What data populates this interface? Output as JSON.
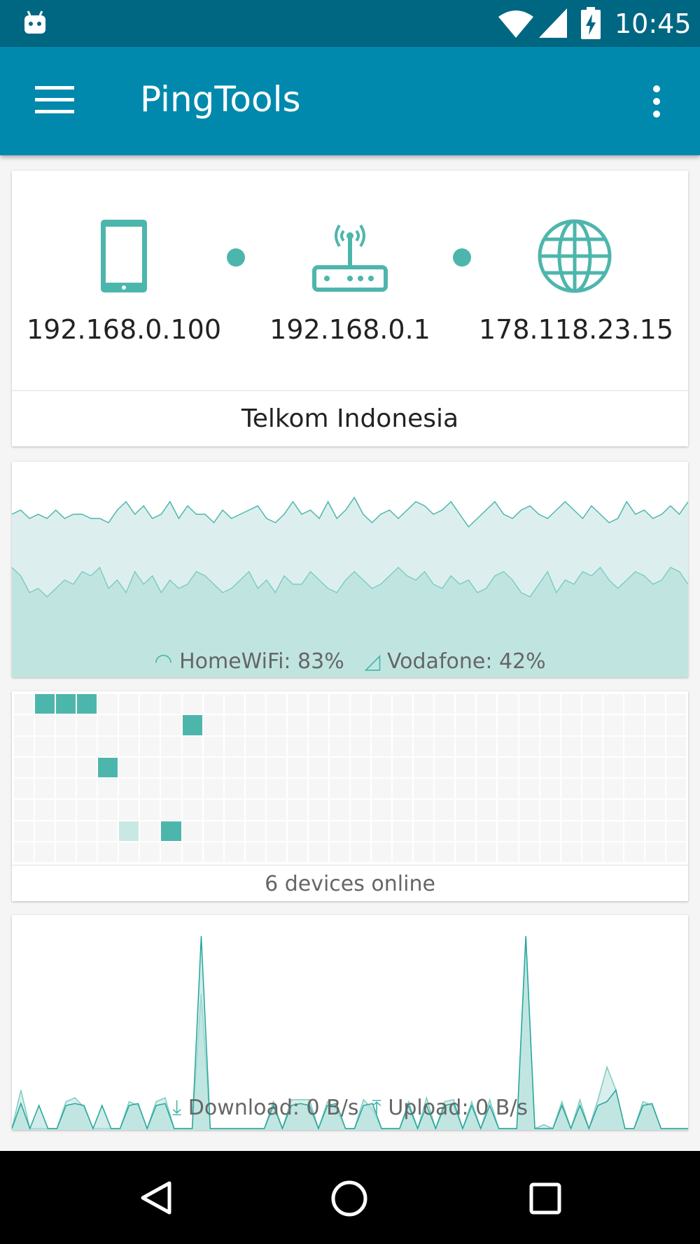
{
  "status_bar": {
    "time": "10:45",
    "icons": [
      "android-icon",
      "wifi-icon",
      "cell-signal-icon",
      "battery-charging-icon"
    ]
  },
  "app_bar": {
    "title": "PingTools",
    "icons": [
      "menu-icon",
      "more-vert-icon"
    ]
  },
  "accent": "#4db6ac",
  "network": {
    "device_ip": "192.168.0.100",
    "router_ip": "192.168.0.1",
    "external_ip": "178.118.23.15",
    "isp": "Telkom Indonesia"
  },
  "signal": {
    "wifi_label": "HomeWiFi: 83%",
    "cell_label": "Vodafone: 42%",
    "chart_data": {
      "type": "area",
      "series": [
        {
          "name": "HomeWiFi",
          "values": [
            83,
            84,
            82,
            83,
            82,
            84,
            82,
            83,
            83,
            82,
            82,
            81,
            84,
            86,
            83,
            85,
            82,
            83,
            86,
            82,
            85,
            83,
            83,
            81,
            84,
            82,
            83,
            84,
            85,
            82,
            81,
            83,
            86,
            83,
            84,
            82,
            86,
            82,
            84,
            87,
            83,
            81,
            83,
            84,
            82,
            84,
            86,
            85,
            83,
            84,
            86,
            83,
            80,
            82,
            84,
            86,
            83,
            82,
            84,
            85,
            83,
            82,
            84,
            86,
            84,
            82,
            85,
            83,
            81,
            82,
            86,
            83,
            84,
            82,
            83,
            85,
            83,
            86
          ]
        },
        {
          "name": "Vodafone",
          "values": [
            46,
            44,
            40,
            41,
            39,
            41,
            43,
            42,
            45,
            44,
            46,
            41,
            43,
            40,
            45,
            42,
            44,
            40,
            43,
            41,
            42,
            45,
            44,
            42,
            40,
            41,
            43,
            45,
            41,
            43,
            40,
            44,
            42,
            42,
            45,
            43,
            41,
            40,
            43,
            45,
            43,
            41,
            42,
            44,
            46,
            44,
            43,
            45,
            42,
            41,
            44,
            42,
            43,
            40,
            41,
            44,
            45,
            43,
            40,
            39,
            42,
            45,
            40,
            43,
            42,
            45,
            44,
            46,
            43,
            41,
            43,
            45,
            44,
            42,
            43,
            46,
            45,
            42
          ]
        }
      ],
      "ylim": [
        0,
        100
      ]
    }
  },
  "devices": {
    "label": "6 devices online",
    "columns": 32,
    "rows": 8,
    "cells": [
      {
        "row": 0,
        "col": 1,
        "state": "online"
      },
      {
        "row": 0,
        "col": 2,
        "state": "online"
      },
      {
        "row": 0,
        "col": 3,
        "state": "online"
      },
      {
        "row": 1,
        "col": 8,
        "state": "online"
      },
      {
        "row": 3,
        "col": 4,
        "state": "online"
      },
      {
        "row": 6,
        "col": 5,
        "state": "idle"
      },
      {
        "row": 6,
        "col": 7,
        "state": "online"
      }
    ]
  },
  "traffic": {
    "download_label": "Download: 0 B/s",
    "upload_label": "Upload: 0 B/s",
    "chart_data": {
      "type": "area",
      "series": [
        {
          "name": "Download",
          "values": [
            0,
            13,
            0,
            12,
            0,
            0,
            12,
            13,
            12,
            0,
            12,
            0,
            0,
            12,
            13,
            0,
            12,
            13,
            0,
            0,
            0,
            100,
            0,
            0,
            0,
            0,
            0,
            0,
            0,
            12,
            0,
            12,
            13,
            12,
            0,
            12,
            13,
            0,
            0,
            12,
            13,
            0,
            0,
            0,
            12,
            0,
            12,
            0,
            12,
            13,
            0,
            12,
            0,
            12,
            0,
            0,
            0,
            100,
            0,
            0,
            0,
            12,
            0,
            12,
            0,
            12,
            14,
            20,
            0,
            0,
            12,
            13,
            0,
            0,
            0,
            0
          ]
        },
        {
          "name": "Upload",
          "values": [
            0,
            20,
            0,
            0,
            0,
            0,
            14,
            16,
            11,
            0,
            0,
            0,
            0,
            14,
            12,
            0,
            14,
            16,
            0,
            0,
            0,
            70,
            0,
            0,
            0,
            0,
            0,
            0,
            0,
            14,
            0,
            15,
            15,
            15,
            0,
            14,
            10,
            0,
            0,
            15,
            10,
            0,
            0,
            0,
            14,
            0,
            16,
            0,
            14,
            15,
            0,
            14,
            0,
            15,
            0,
            0,
            0,
            100,
            0,
            2,
            0,
            14,
            0,
            15,
            0,
            15,
            32,
            20,
            0,
            0,
            14,
            12,
            0,
            0,
            0,
            0
          ]
        }
      ]
    }
  },
  "nav_bar": {
    "icons": [
      "back-icon",
      "home-icon",
      "recents-icon"
    ]
  }
}
